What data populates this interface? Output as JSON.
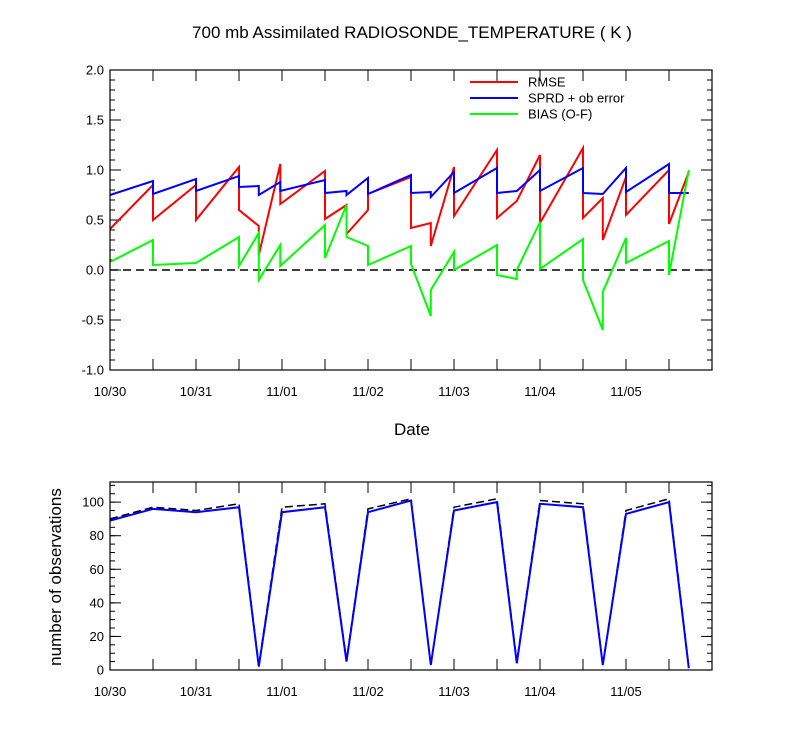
{
  "chart_data": [
    {
      "type": "line",
      "title": "700 mb Assimilated RADIOSONDE_TEMPERATURE ( K )",
      "xlabel": "Date",
      "ylabel": "",
      "x_ticks": [
        "10/30",
        "10/31",
        "11/01",
        "11/02",
        "11/03",
        "11/04",
        "11/05"
      ],
      "xlim": [
        0,
        7.0
      ],
      "ylim": [
        -1.0,
        2.0
      ],
      "y_ticks": [
        "-1.0",
        "-0.5",
        "0.0",
        "0.5",
        "1.0",
        "1.5",
        "2.0"
      ],
      "zero_line": "dashed",
      "legend_position": "top-right",
      "series": [
        {
          "name": "RMSE",
          "color": "#ff0000",
          "points": [
            [
              0.0,
              0.41
            ],
            [
              0.5,
              0.85
            ],
            [
              0.5,
              0.5
            ],
            [
              1.0,
              0.85
            ],
            [
              1.0,
              0.5
            ],
            [
              1.5,
              1.03
            ],
            [
              1.5,
              0.6
            ],
            [
              1.73,
              0.44
            ],
            [
              1.73,
              0.15
            ],
            [
              1.98,
              1.06
            ],
            [
              1.98,
              0.66
            ],
            [
              2.5,
              0.99
            ],
            [
              2.5,
              0.51
            ],
            [
              2.75,
              0.65
            ],
            [
              2.75,
              0.36
            ],
            [
              3.0,
              0.6
            ],
            [
              3.0,
              0.76
            ],
            [
              3.5,
              0.93
            ],
            [
              3.5,
              0.42
            ],
            [
              3.73,
              0.47
            ],
            [
              3.73,
              0.24
            ],
            [
              4.0,
              1.03
            ],
            [
              4.0,
              0.54
            ],
            [
              4.5,
              1.2
            ],
            [
              4.5,
              0.52
            ],
            [
              4.73,
              0.69
            ],
            [
              4.73,
              0.69
            ],
            [
              5.0,
              1.15
            ],
            [
              5.0,
              0.47
            ],
            [
              5.5,
              1.22
            ],
            [
              5.5,
              0.52
            ],
            [
              5.73,
              0.72
            ],
            [
              5.73,
              0.3
            ],
            [
              6.0,
              0.93
            ],
            [
              6.0,
              0.55
            ],
            [
              6.5,
              1.0
            ],
            [
              6.5,
              0.46
            ],
            [
              6.73,
              0.98
            ]
          ]
        },
        {
          "name": "SPRD + ob error",
          "color": "#0000ff",
          "points": [
            [
              0.0,
              0.75
            ],
            [
              0.5,
              0.89
            ],
            [
              0.5,
              0.76
            ],
            [
              1.0,
              0.91
            ],
            [
              1.0,
              0.79
            ],
            [
              1.5,
              0.94
            ],
            [
              1.5,
              0.83
            ],
            [
              1.73,
              0.84
            ],
            [
              1.73,
              0.75
            ],
            [
              1.98,
              0.88
            ],
            [
              1.98,
              0.79
            ],
            [
              2.5,
              0.9
            ],
            [
              2.5,
              0.77
            ],
            [
              2.75,
              0.79
            ],
            [
              2.75,
              0.75
            ],
            [
              3.0,
              0.92
            ],
            [
              3.0,
              0.76
            ],
            [
              3.5,
              0.95
            ],
            [
              3.5,
              0.77
            ],
            [
              3.73,
              0.78
            ],
            [
              3.73,
              0.73
            ],
            [
              4.0,
              0.98
            ],
            [
              4.0,
              0.77
            ],
            [
              4.5,
              1.02
            ],
            [
              4.5,
              0.77
            ],
            [
              4.73,
              0.79
            ],
            [
              4.73,
              0.79
            ],
            [
              5.0,
              1.0
            ],
            [
              5.0,
              0.79
            ],
            [
              5.5,
              1.02
            ],
            [
              5.5,
              0.77
            ],
            [
              5.73,
              0.76
            ],
            [
              5.73,
              0.76
            ],
            [
              6.0,
              1.02
            ],
            [
              6.0,
              0.78
            ],
            [
              6.5,
              1.06
            ],
            [
              6.5,
              0.77
            ],
            [
              6.73,
              0.77
            ]
          ]
        },
        {
          "name": "BIAS (O-F)",
          "color": "#00ff00",
          "points": [
            [
              0.0,
              0.08
            ],
            [
              0.5,
              0.3
            ],
            [
              0.5,
              0.05
            ],
            [
              1.0,
              0.07
            ],
            [
              1.0,
              0.07
            ],
            [
              1.5,
              0.33
            ],
            [
              1.5,
              0.04
            ],
            [
              1.73,
              0.37
            ],
            [
              1.73,
              -0.1
            ],
            [
              1.98,
              0.25
            ],
            [
              1.98,
              0.04
            ],
            [
              2.5,
              0.45
            ],
            [
              2.5,
              0.12
            ],
            [
              2.75,
              0.65
            ],
            [
              2.75,
              0.33
            ],
            [
              3.0,
              0.24
            ],
            [
              3.0,
              0.05
            ],
            [
              3.5,
              0.24
            ],
            [
              3.5,
              0.06
            ],
            [
              3.73,
              -0.46
            ],
            [
              3.73,
              -0.2
            ],
            [
              4.0,
              0.18
            ],
            [
              4.0,
              0.0
            ],
            [
              4.5,
              0.25
            ],
            [
              4.5,
              -0.05
            ],
            [
              4.73,
              -0.09
            ],
            [
              4.73,
              0.0
            ],
            [
              5.0,
              0.48
            ],
            [
              5.0,
              0.01
            ],
            [
              5.5,
              0.31
            ],
            [
              5.5,
              -0.1
            ],
            [
              5.73,
              -0.6
            ],
            [
              5.73,
              -0.22
            ],
            [
              6.0,
              0.32
            ],
            [
              6.0,
              0.07
            ],
            [
              6.5,
              0.29
            ],
            [
              6.5,
              -0.05
            ],
            [
              6.73,
              1.0
            ]
          ]
        }
      ]
    },
    {
      "type": "line",
      "title": "",
      "xlabel": "",
      "ylabel": "number of observations",
      "x_ticks": [
        "10/30",
        "10/31",
        "11/01",
        "11/02",
        "11/03",
        "11/04",
        "11/05"
      ],
      "xlim": [
        0,
        7.0
      ],
      "ylim": [
        0,
        112
      ],
      "y_ticks": [
        "0",
        "20",
        "40",
        "60",
        "80",
        "100"
      ],
      "series": [
        {
          "name": "",
          "color": "#000000",
          "style": "dashed",
          "x": [
            0.0,
            0.5,
            1.0,
            1.5,
            1.73,
            2.0,
            2.5,
            2.75,
            3.0,
            3.5,
            3.73,
            4.0,
            4.5,
            4.73,
            5.0,
            5.5,
            5.73,
            6.0,
            6.5,
            6.73
          ],
          "values": [
            90,
            97,
            95,
            99,
            3,
            97,
            99,
            6,
            96,
            102,
            3,
            97,
            102,
            5,
            101,
            99,
            3,
            95,
            102,
            2
          ]
        },
        {
          "name": "",
          "color": "#0000ff",
          "style": "solid",
          "x": [
            0.0,
            0.5,
            1.0,
            1.5,
            1.73,
            2.0,
            2.5,
            2.75,
            3.0,
            3.5,
            3.73,
            4.0,
            4.5,
            4.73,
            5.0,
            5.5,
            5.73,
            6.0,
            6.5,
            6.73
          ],
          "values": [
            89,
            96,
            94,
            97,
            2,
            94,
            97,
            5,
            94,
            101,
            3,
            95,
            100,
            4,
            99,
            97,
            3,
            93,
            100,
            1
          ]
        }
      ]
    }
  ]
}
